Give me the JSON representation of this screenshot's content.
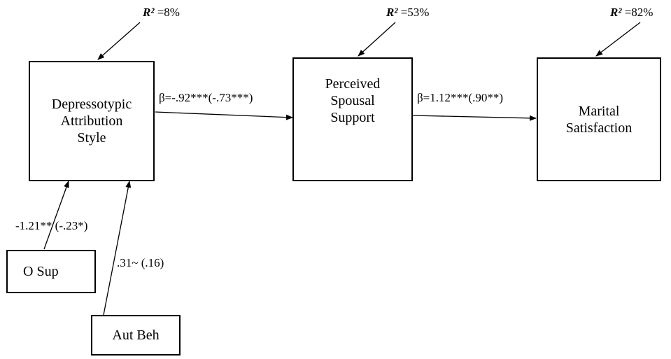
{
  "nodes": {
    "depressotypic": {
      "lines": [
        "Depressotypic",
        "Attribution",
        "Style"
      ],
      "r2": "=8%"
    },
    "spousal": {
      "lines": [
        "Perceived",
        "Spousal",
        "Support"
      ],
      "r2": "=53%"
    },
    "marital": {
      "lines": [
        "Marital",
        "Satisfaction"
      ],
      "r2": "=82%"
    },
    "osup": {
      "label": "O Sup"
    },
    "autbeh": {
      "label": "Aut Beh"
    }
  },
  "r2_symbol": "R²",
  "paths": {
    "dep_to_spousal": "β=-.92***(-.73***)",
    "spousal_to_marital": "β=1.12***(.90**)",
    "osup_to_dep": "-1.21** (-.23*)",
    "autbeh_to_dep": ".31~ (.16)"
  }
}
